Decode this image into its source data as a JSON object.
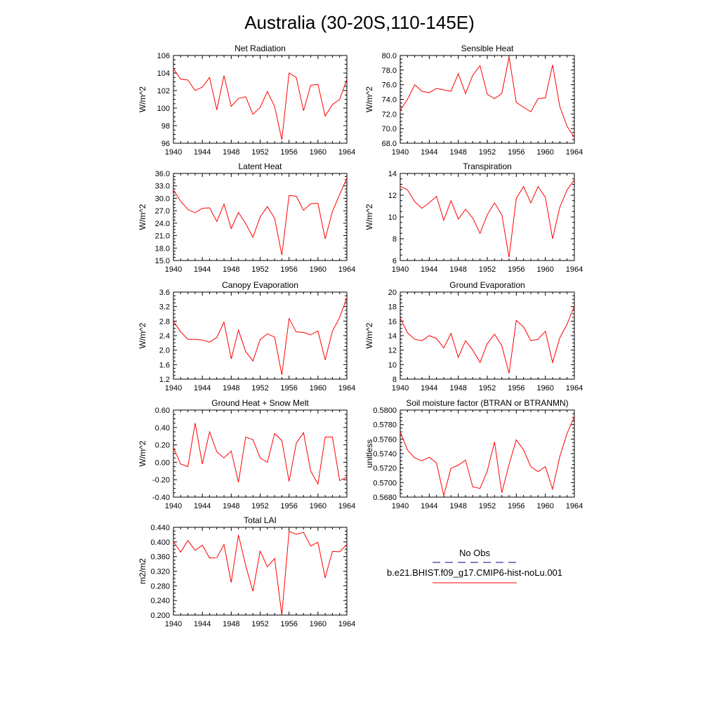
{
  "figure": {
    "title": "Australia (30-20S,110-145E)"
  },
  "legend": {
    "obs_label": "No Obs",
    "case_label": "b.e21.BHIST.f09_g17.CMIP6-hist-noLu.001",
    "obs_color": "#000080",
    "case_color": "#ff0000"
  },
  "chart_data": [
    {
      "type": "line",
      "title": "Net Radiation",
      "xlabel": "",
      "ylabel": "W/m^2",
      "xlim": [
        1940,
        1964
      ],
      "ylim": [
        96,
        106
      ],
      "xticks": [
        "1940",
        "1944",
        "1948",
        "1952",
        "1956",
        "1960",
        "1964"
      ],
      "yticks": [
        "96",
        "98",
        "100",
        "102",
        "104",
        "106"
      ],
      "x": [
        1940,
        1941,
        1942,
        1943,
        1944,
        1945,
        1946,
        1947,
        1948,
        1949,
        1950,
        1951,
        1952,
        1953,
        1954,
        1955,
        1956,
        1957,
        1958,
        1959,
        1960,
        1961,
        1962,
        1963,
        1964
      ],
      "series": [
        {
          "values": [
            104.5,
            103.3,
            103.2,
            102.0,
            102.4,
            103.5,
            99.8,
            103.7,
            100.2,
            101.1,
            101.3,
            99.3,
            100.1,
            101.9,
            100.2,
            96.4,
            104.0,
            103.5,
            99.7,
            102.6,
            102.7,
            99.1,
            100.4,
            101.0,
            103.3
          ]
        }
      ]
    },
    {
      "type": "line",
      "title": "Sensible Heat",
      "xlabel": "",
      "ylabel": "W/m^2",
      "xlim": [
        1940,
        1964
      ],
      "ylim": [
        68,
        80
      ],
      "xticks": [
        "1940",
        "1944",
        "1948",
        "1952",
        "1956",
        "1960",
        "1964"
      ],
      "yticks": [
        "68.0",
        "70.0",
        "72.0",
        "74.0",
        "76.0",
        "78.0",
        "80.0"
      ],
      "x": [
        1940,
        1941,
        1942,
        1943,
        1944,
        1945,
        1946,
        1947,
        1948,
        1949,
        1950,
        1951,
        1952,
        1953,
        1954,
        1955,
        1956,
        1957,
        1958,
        1959,
        1960,
        1961,
        1962,
        1963,
        1964
      ],
      "series": [
        {
          "values": [
            72.5,
            74.0,
            76.0,
            75.1,
            74.9,
            75.5,
            75.3,
            75.1,
            77.5,
            74.8,
            77.3,
            78.6,
            74.7,
            74.1,
            74.8,
            79.8,
            73.6,
            72.9,
            72.3,
            74.1,
            74.2,
            78.7,
            73.0,
            70.3,
            68.8
          ]
        }
      ]
    },
    {
      "type": "line",
      "title": "Latent Heat",
      "xlabel": "",
      "ylabel": "W/m^2",
      "xlim": [
        1940,
        1964
      ],
      "ylim": [
        15,
        36
      ],
      "xticks": [
        "1940",
        "1944",
        "1948",
        "1952",
        "1956",
        "1960",
        "1964"
      ],
      "yticks": [
        "15.0",
        "18.0",
        "21.0",
        "24.0",
        "27.0",
        "30.0",
        "33.0",
        "36.0"
      ],
      "x": [
        1940,
        1941,
        1942,
        1943,
        1944,
        1945,
        1946,
        1947,
        1948,
        1949,
        1950,
        1951,
        1952,
        1953,
        1954,
        1955,
        1956,
        1957,
        1958,
        1959,
        1960,
        1961,
        1962,
        1963,
        1964
      ],
      "series": [
        {
          "values": [
            32.0,
            29.3,
            27.3,
            26.5,
            27.6,
            27.7,
            24.4,
            28.6,
            22.7,
            26.6,
            23.9,
            20.6,
            25.5,
            28.0,
            25.2,
            16.3,
            30.7,
            30.5,
            27.1,
            28.7,
            28.8,
            20.2,
            26.8,
            30.9,
            34.9
          ]
        }
      ]
    },
    {
      "type": "line",
      "title": "Transpiration",
      "xlabel": "",
      "ylabel": "W/m^2",
      "xlim": [
        1940,
        1964
      ],
      "ylim": [
        6,
        14
      ],
      "xticks": [
        "1940",
        "1944",
        "1948",
        "1952",
        "1956",
        "1960",
        "1964"
      ],
      "yticks": [
        "6",
        "8",
        "10",
        "12",
        "14"
      ],
      "x": [
        1940,
        1941,
        1942,
        1943,
        1944,
        1945,
        1946,
        1947,
        1948,
        1949,
        1950,
        1951,
        1952,
        1953,
        1954,
        1955,
        1956,
        1957,
        1958,
        1959,
        1960,
        1961,
        1962,
        1963,
        1964
      ],
      "series": [
        {
          "values": [
            12.8,
            12.5,
            11.4,
            10.8,
            11.3,
            11.9,
            9.7,
            11.5,
            9.8,
            10.7,
            9.9,
            8.5,
            10.2,
            11.3,
            10.2,
            6.3,
            11.7,
            12.8,
            11.3,
            12.8,
            11.8,
            8.0,
            10.9,
            12.5,
            13.4
          ]
        }
      ]
    },
    {
      "type": "line",
      "title": "Canopy Evaporation",
      "xlabel": "",
      "ylabel": "W/m^2",
      "xlim": [
        1940,
        1964
      ],
      "ylim": [
        1.2,
        3.6
      ],
      "xticks": [
        "1940",
        "1944",
        "1948",
        "1952",
        "1956",
        "1960",
        "1964"
      ],
      "yticks": [
        "1.2",
        "1.6",
        "2.0",
        "2.4",
        "2.8",
        "3.2",
        "3.6"
      ],
      "x": [
        1940,
        1941,
        1942,
        1943,
        1944,
        1945,
        1946,
        1947,
        1948,
        1949,
        1950,
        1951,
        1952,
        1953,
        1954,
        1955,
        1956,
        1957,
        1958,
        1959,
        1960,
        1961,
        1962,
        1963,
        1964
      ],
      "series": [
        {
          "values": [
            2.8,
            2.5,
            2.3,
            2.3,
            2.28,
            2.22,
            2.35,
            2.77,
            1.76,
            2.55,
            1.96,
            1.7,
            2.29,
            2.45,
            2.36,
            1.32,
            2.87,
            2.5,
            2.49,
            2.42,
            2.53,
            1.73,
            2.52,
            2.9,
            3.45
          ]
        }
      ]
    },
    {
      "type": "line",
      "title": "Ground Evaporation",
      "xlabel": "",
      "ylabel": "W/m^2",
      "xlim": [
        1940,
        1964
      ],
      "ylim": [
        8,
        20
      ],
      "xticks": [
        "1940",
        "1944",
        "1948",
        "1952",
        "1956",
        "1960",
        "1964"
      ],
      "yticks": [
        "8",
        "10",
        "12",
        "14",
        "16",
        "18",
        "20"
      ],
      "x": [
        1940,
        1941,
        1942,
        1943,
        1944,
        1945,
        1946,
        1947,
        1948,
        1949,
        1950,
        1951,
        1952,
        1953,
        1954,
        1955,
        1956,
        1957,
        1958,
        1959,
        1960,
        1961,
        1962,
        1963,
        1964
      ],
      "series": [
        {
          "values": [
            16.4,
            14.4,
            13.5,
            13.3,
            14.0,
            13.6,
            12.3,
            14.3,
            11.0,
            13.3,
            12.0,
            10.3,
            12.9,
            14.2,
            12.6,
            8.8,
            16.1,
            15.2,
            13.3,
            13.5,
            14.6,
            10.3,
            13.7,
            15.6,
            18.1
          ]
        }
      ]
    },
    {
      "type": "line",
      "title": "Ground Heat + Snow Melt",
      "xlabel": "",
      "ylabel": "W/m^2",
      "xlim": [
        1940,
        1964
      ],
      "ylim": [
        -0.4,
        0.6
      ],
      "xticks": [
        "1940",
        "1944",
        "1948",
        "1952",
        "1956",
        "1960",
        "1964"
      ],
      "yticks": [
        "-0.40",
        "-0.20",
        "0.00",
        "0.20",
        "0.40",
        "0.60"
      ],
      "x": [
        1940,
        1941,
        1942,
        1943,
        1944,
        1945,
        1946,
        1947,
        1948,
        1949,
        1950,
        1951,
        1952,
        1953,
        1954,
        1955,
        1956,
        1957,
        1958,
        1959,
        1960,
        1961,
        1962,
        1963,
        1964
      ],
      "series": [
        {
          "values": [
            0.17,
            -0.02,
            -0.05,
            0.45,
            -0.02,
            0.35,
            0.12,
            0.05,
            0.13,
            -0.23,
            0.29,
            0.26,
            0.05,
            0.0,
            0.33,
            0.25,
            -0.22,
            0.22,
            0.34,
            -0.1,
            -0.25,
            0.29,
            0.29,
            -0.21,
            -0.17
          ]
        }
      ]
    },
    {
      "type": "line",
      "title": "Soil moisture factor (BTRAN or BTRANMN)",
      "xlabel": "",
      "ylabel": "unitless",
      "xlim": [
        1940,
        1964
      ],
      "ylim": [
        0.568,
        0.58
      ],
      "xticks": [
        "1940",
        "1944",
        "1948",
        "1952",
        "1956",
        "1960",
        "1964"
      ],
      "yticks": [
        "0.5680",
        "0.5700",
        "0.5720",
        "0.5740",
        "0.5760",
        "0.5780",
        "0.5800"
      ],
      "x": [
        1940,
        1941,
        1942,
        1943,
        1944,
        1945,
        1946,
        1947,
        1948,
        1949,
        1950,
        1951,
        1952,
        1953,
        1954,
        1955,
        1956,
        1957,
        1958,
        1959,
        1960,
        1961,
        1962,
        1963,
        1964
      ],
      "series": [
        {
          "values": [
            0.577,
            0.5745,
            0.5734,
            0.573,
            0.5735,
            0.5727,
            0.5682,
            0.572,
            0.5724,
            0.5731,
            0.5694,
            0.5692,
            0.5716,
            0.5756,
            0.5686,
            0.5725,
            0.5759,
            0.5745,
            0.5722,
            0.5715,
            0.5722,
            0.5691,
            0.5736,
            0.5768,
            0.5791
          ]
        }
      ]
    },
    {
      "type": "line",
      "title": "Total LAI",
      "xlabel": "",
      "ylabel": "m2/m2",
      "xlim": [
        1940,
        1964
      ],
      "ylim": [
        0.2,
        0.44
      ],
      "xticks": [
        "1940",
        "1944",
        "1948",
        "1952",
        "1956",
        "1960",
        "1964"
      ],
      "yticks": [
        "0.200",
        "0.240",
        "0.280",
        "0.320",
        "0.360",
        "0.400",
        "0.440"
      ],
      "x": [
        1940,
        1941,
        1942,
        1943,
        1944,
        1945,
        1946,
        1947,
        1948,
        1949,
        1950,
        1951,
        1952,
        1953,
        1954,
        1955,
        1956,
        1957,
        1958,
        1959,
        1960,
        1961,
        1962,
        1963,
        1964
      ],
      "series": [
        {
          "values": [
            0.401,
            0.372,
            0.404,
            0.377,
            0.391,
            0.356,
            0.357,
            0.393,
            0.289,
            0.419,
            0.336,
            0.265,
            0.375,
            0.332,
            0.355,
            0.2,
            0.429,
            0.421,
            0.426,
            0.389,
            0.399,
            0.302,
            0.374,
            0.373,
            0.393
          ]
        }
      ]
    }
  ]
}
